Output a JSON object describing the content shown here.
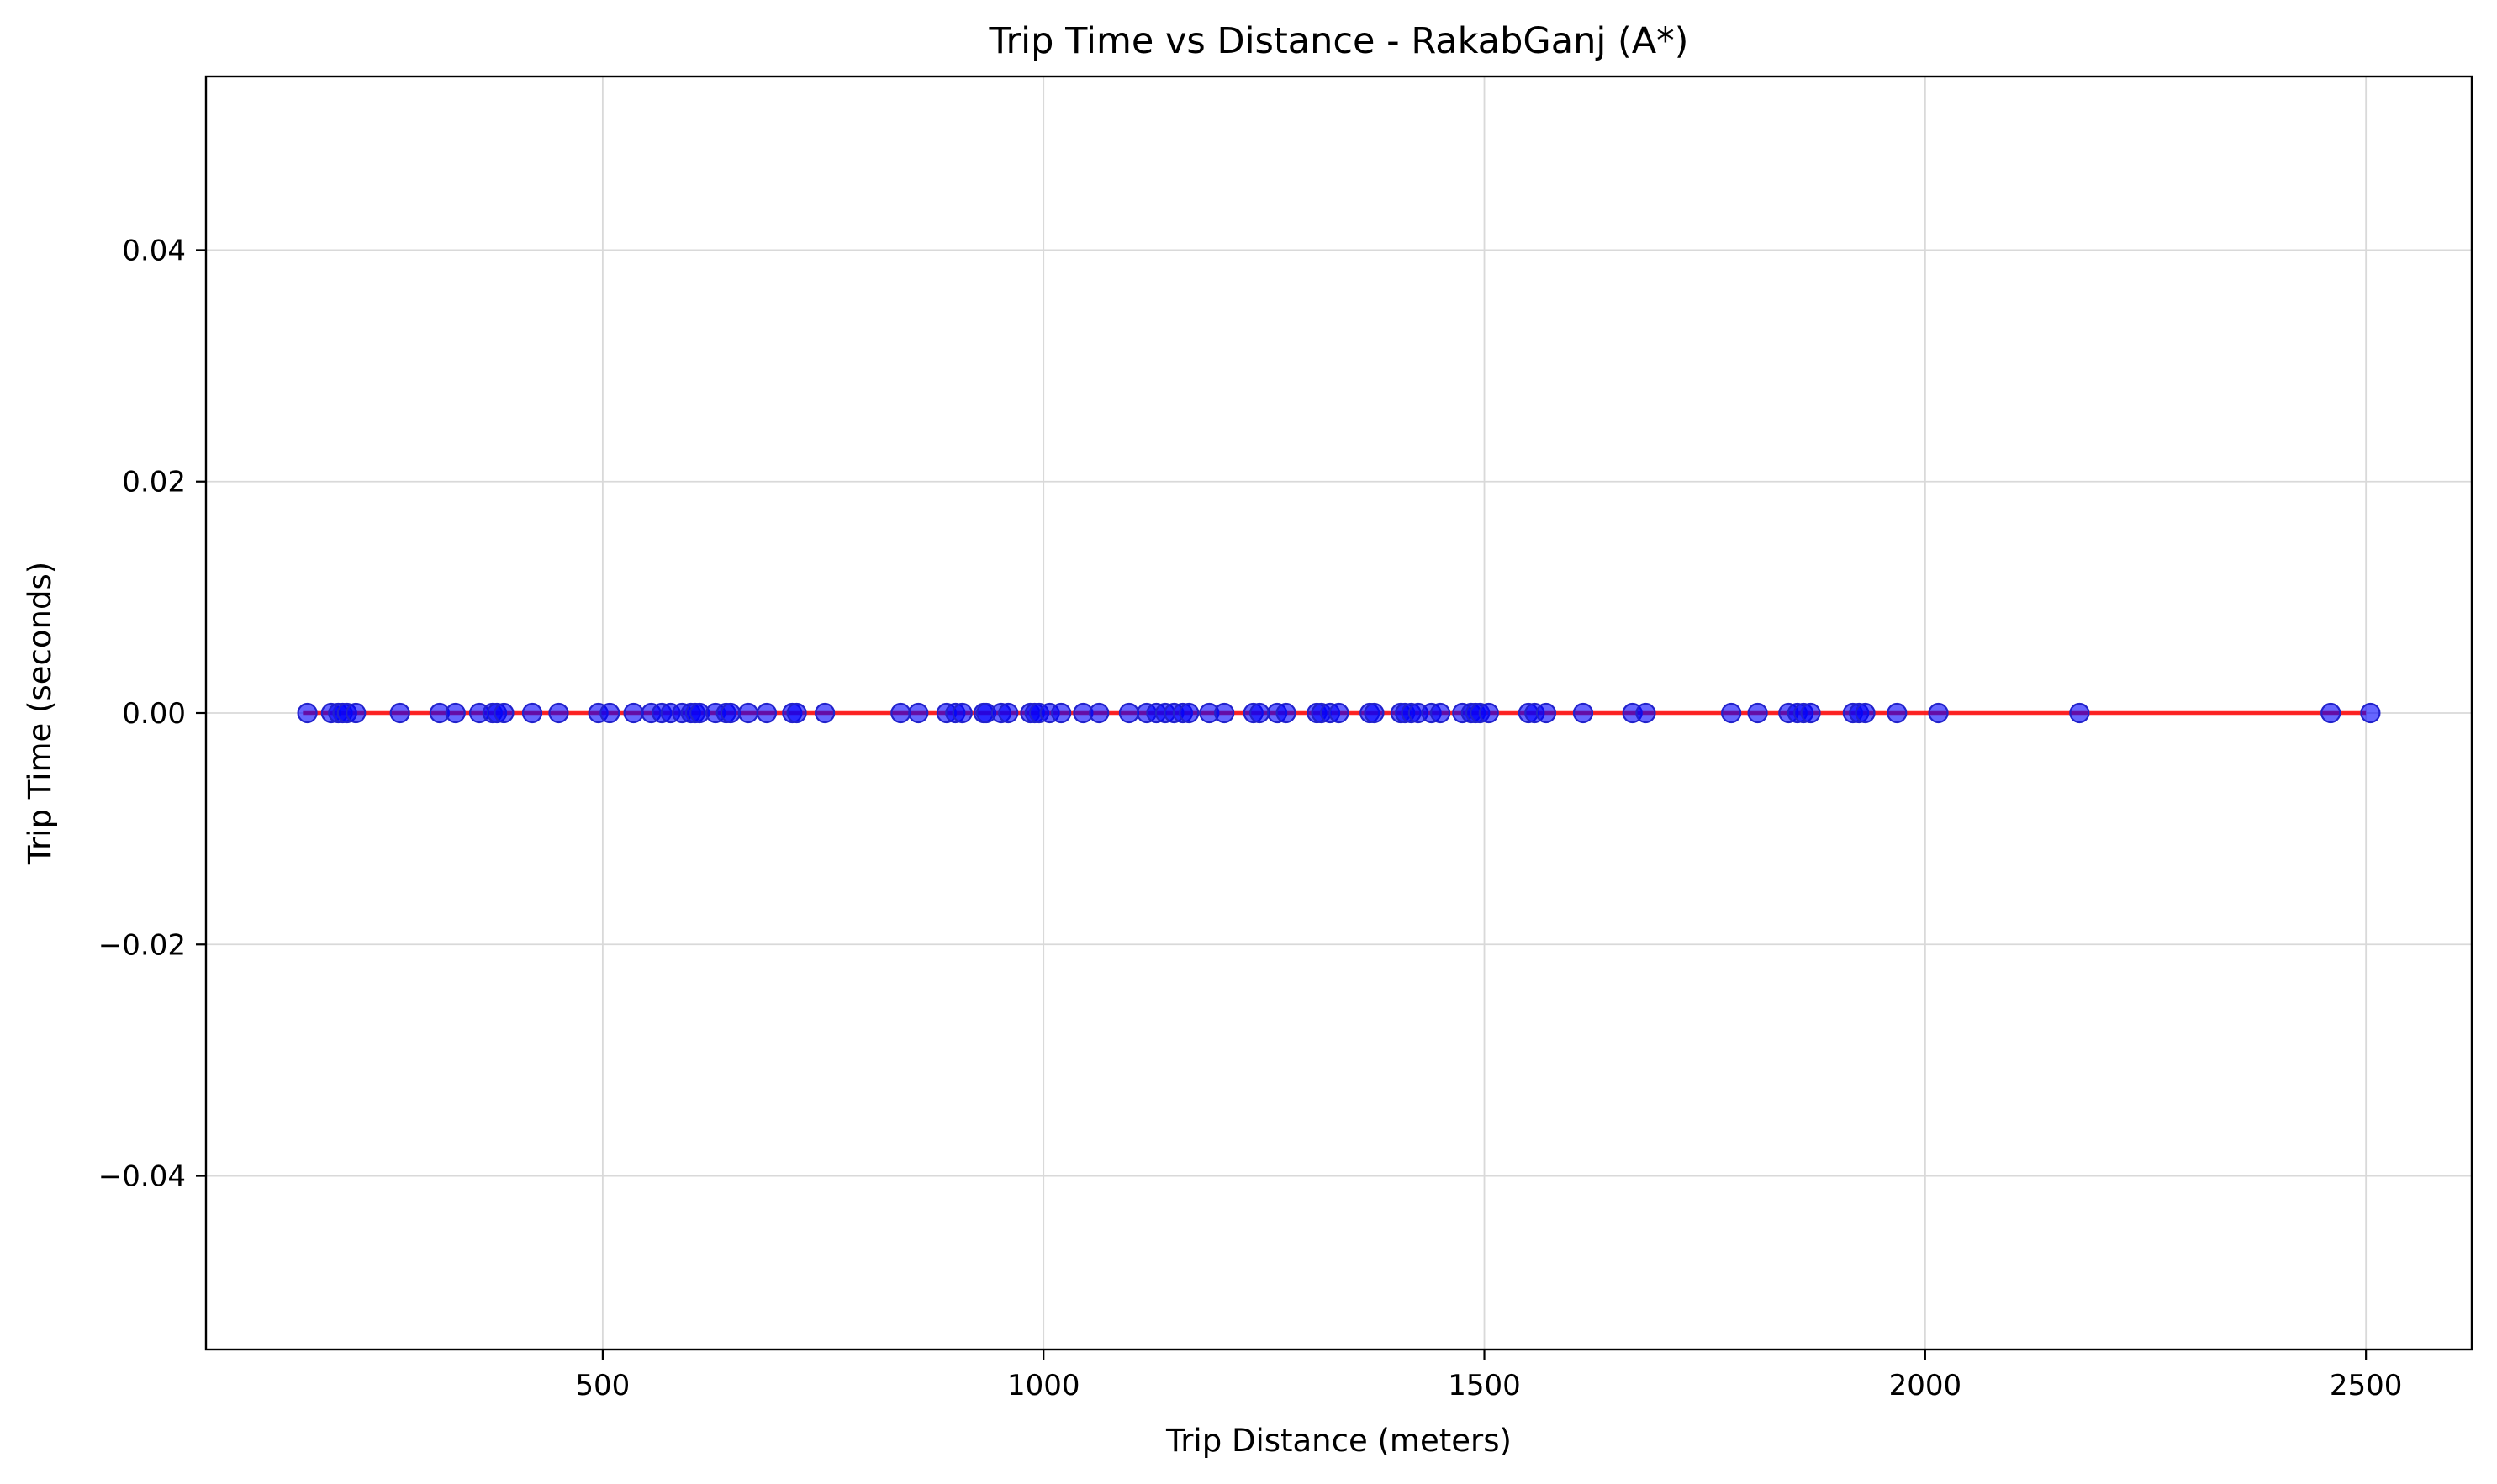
{
  "chart_data": {
    "type": "scatter",
    "title": "Trip Time vs Distance - RakabGanj (A*)",
    "xlabel": "Trip Distance (meters)",
    "ylabel": "Trip Time (seconds)",
    "xlim": [
      50,
      2620
    ],
    "ylim": [
      -0.055,
      0.055
    ],
    "xticks": [
      500,
      1000,
      1500,
      2000,
      2500
    ],
    "xtick_labels": [
      "500",
      "1000",
      "1500",
      "2000",
      "2500"
    ],
    "yticks": [
      -0.04,
      -0.02,
      0.0,
      0.02,
      0.04
    ],
    "ytick_labels": [
      "−0.04",
      "−0.02",
      "0.00",
      "0.02",
      "0.04"
    ],
    "grid": true,
    "colors": {
      "points": "#0000ff",
      "point_edge": "#2222cc",
      "trend": "#ff0000"
    },
    "trend_line": {
      "x": [
        160,
        2500
      ],
      "y": [
        0,
        0
      ]
    },
    "x": [
      165,
      192,
      200,
      205,
      210,
      220,
      270,
      315,
      333,
      360,
      375,
      380,
      388,
      420,
      450,
      495,
      508,
      535,
      555,
      567,
      577,
      590,
      600,
      605,
      610,
      628,
      640,
      645,
      665,
      686,
      715,
      720,
      752,
      838,
      858,
      890,
      900,
      908,
      932,
      935,
      952,
      960,
      985,
      990,
      995,
      1007,
      1020,
      1045,
      1063,
      1097,
      1117,
      1128,
      1138,
      1148,
      1158,
      1165,
      1188,
      1205,
      1238,
      1245,
      1265,
      1275,
      1310,
      1315,
      1325,
      1335,
      1370,
      1375,
      1405,
      1410,
      1417,
      1425,
      1440,
      1450,
      1475,
      1485,
      1490,
      1495,
      1505,
      1550,
      1557,
      1570,
      1612,
      1668,
      1683,
      1780,
      1810,
      1845,
      1855,
      1862,
      1870,
      1918,
      1925,
      1932,
      1968,
      2015,
      2175,
      2460,
      2505
    ],
    "y": [
      0,
      0,
      0,
      0,
      0,
      0,
      0,
      0,
      0,
      0,
      0,
      0,
      0,
      0,
      0,
      0,
      0,
      0,
      0,
      0,
      0,
      0,
      0,
      0,
      0,
      0,
      0,
      0,
      0,
      0,
      0,
      0,
      0,
      0,
      0,
      0,
      0,
      0,
      0,
      0,
      0,
      0,
      0,
      0,
      0,
      0,
      0,
      0,
      0,
      0,
      0,
      0,
      0,
      0,
      0,
      0,
      0,
      0,
      0,
      0,
      0,
      0,
      0,
      0,
      0,
      0,
      0,
      0,
      0,
      0,
      0,
      0,
      0,
      0,
      0,
      0,
      0,
      0,
      0,
      0,
      0,
      0,
      0,
      0,
      0,
      0,
      0,
      0,
      0,
      0,
      0,
      0,
      0,
      0,
      0,
      0,
      0,
      0,
      0
    ]
  }
}
